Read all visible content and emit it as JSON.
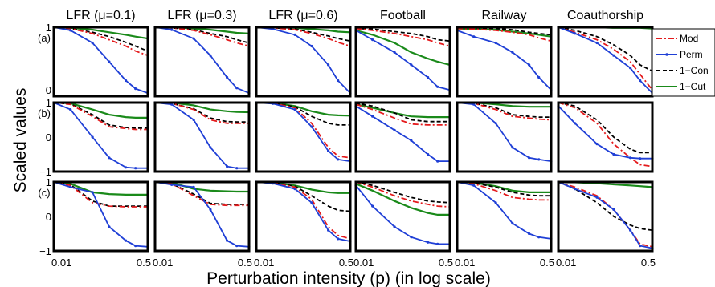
{
  "figure": {
    "ylabel": "Scaled values",
    "xlabel": "Perturbation intensity (p) (in log scale)"
  },
  "columns": [
    "LFR (μ=0.1)",
    "LFR (μ=0.3)",
    "LFR (μ=0.6)",
    "Football",
    "Railway",
    "Coauthorship"
  ],
  "rows": [
    {
      "label": "(a)",
      "yticks": [
        "1",
        "0"
      ]
    },
    {
      "label": "(b)",
      "yticks": [
        "1",
        "0",
        "−1"
      ]
    },
    {
      "label": "(c)",
      "yticks": [
        "1",
        "0",
        "−1"
      ]
    }
  ],
  "x_tick_labels": [
    "0.01",
    "0.5"
  ],
  "legend": [
    {
      "key": "mod",
      "label": "Mod",
      "color": "#e41a1c",
      "dash": "dashdot"
    },
    {
      "key": "perm",
      "label": "Perm",
      "color": "#1f3fd6",
      "dash": "solid-marker"
    },
    {
      "key": "con",
      "label": "1−Con",
      "color": "#000000",
      "dash": "dashed"
    },
    {
      "key": "cut",
      "label": "1−Cut",
      "color": "#1a8a1a",
      "dash": "solid"
    }
  ],
  "chart_data": {
    "type": "line",
    "layout": "3x6 small multiples",
    "x_scale": "log",
    "x_range": [
      0.01,
      0.5
    ],
    "x_samples": [
      0.01,
      0.02,
      0.05,
      0.1,
      0.2,
      0.3,
      0.5
    ],
    "rows": [
      {
        "ylim": [
          -0.1,
          1
        ],
        "panels": [
          {
            "column": "LFR (μ=0.1)",
            "series": {
              "mod": [
                1,
                0.98,
                0.9,
                0.8,
                0.7,
                0.62,
                0.55
              ],
              "perm": [
                1,
                0.95,
                0.75,
                0.45,
                0.15,
                0.02,
                -0.05
              ],
              "con": [
                1,
                0.98,
                0.92,
                0.85,
                0.76,
                0.7,
                0.62
              ],
              "cut": [
                1,
                0.99,
                0.96,
                0.92,
                0.88,
                0.85,
                0.82
              ]
            }
          },
          {
            "column": "LFR (μ=0.3)",
            "series": {
              "mod": [
                1,
                0.99,
                0.95,
                0.88,
                0.8,
                0.75,
                0.7
              ],
              "perm": [
                1,
                0.96,
                0.82,
                0.55,
                0.2,
                0.03,
                -0.05
              ],
              "con": [
                1,
                0.99,
                0.96,
                0.9,
                0.85,
                0.8,
                0.75
              ],
              "cut": [
                1,
                1,
                0.98,
                0.96,
                0.93,
                0.91,
                0.9
              ]
            }
          },
          {
            "column": "LFR (μ=0.6)",
            "series": {
              "mod": [
                1,
                0.99,
                0.96,
                0.9,
                0.82,
                0.76,
                0.7
              ],
              "perm": [
                1,
                0.97,
                0.88,
                0.7,
                0.4,
                0.15,
                -0.05
              ],
              "con": [
                1,
                0.99,
                0.97,
                0.92,
                0.86,
                0.82,
                0.78
              ],
              "cut": [
                1,
                1,
                0.99,
                0.97,
                0.95,
                0.93,
                0.92
              ]
            }
          },
          {
            "column": "Football",
            "series": {
              "mod": [
                0.98,
                0.95,
                0.9,
                0.85,
                0.8,
                0.75,
                0.7
              ],
              "perm": [
                0.95,
                0.8,
                0.6,
                0.4,
                0.2,
                0.05,
                0
              ],
              "con": [
                0.98,
                0.97,
                0.93,
                0.9,
                0.85,
                0.8,
                0.78
              ],
              "cut": [
                0.95,
                0.88,
                0.75,
                0.6,
                0.5,
                0.45,
                0.4
              ]
            }
          },
          {
            "column": "Railway",
            "series": {
              "mod": [
                0.98,
                0.97,
                0.95,
                0.92,
                0.88,
                0.83,
                0.78
              ],
              "perm": [
                0.95,
                0.85,
                0.75,
                0.6,
                0.4,
                0.2,
                0
              ],
              "con": [
                1,
                0.99,
                0.98,
                0.96,
                0.92,
                0.9,
                0.88
              ],
              "cut": [
                0.98,
                0.97,
                0.96,
                0.93,
                0.9,
                0.88,
                0.85
              ]
            }
          },
          {
            "column": "Coauthorship",
            "series": {
              "mod": [
                1,
                0.92,
                0.8,
                0.65,
                0.45,
                0.25,
                0
              ],
              "perm": [
                1,
                0.9,
                0.75,
                0.55,
                0.35,
                0.15,
                -0.05
              ],
              "con": [
                1,
                0.95,
                0.85,
                0.72,
                0.55,
                0.4,
                0.3
              ],
              "cut": [
                1,
                1,
                1,
                0.99,
                0.99,
                0.99,
                0.98
              ]
            }
          }
        ]
      },
      {
        "ylim": [
          -1,
          1
        ],
        "panels": [
          {
            "column": "LFR (μ=0.1)",
            "series": {
              "mod": [
                1,
                0.95,
                0.6,
                0.3,
                0.25,
                0.22,
                0.22
              ],
              "perm": [
                1,
                0.8,
                0.0,
                -0.6,
                -0.88,
                -0.9,
                -0.9
              ],
              "con": [
                1,
                0.96,
                0.65,
                0.35,
                0.28,
                0.26,
                0.26
              ],
              "cut": [
                1,
                0.98,
                0.8,
                0.65,
                0.58,
                0.56,
                0.56
              ]
            }
          },
          {
            "column": "LFR (μ=0.3)",
            "series": {
              "mod": [
                1,
                0.98,
                0.8,
                0.5,
                0.4,
                0.4,
                0.4
              ],
              "perm": [
                1,
                0.95,
                0.5,
                -0.3,
                -0.85,
                -0.9,
                -0.9
              ],
              "con": [
                1,
                0.98,
                0.82,
                0.55,
                0.45,
                0.44,
                0.44
              ],
              "cut": [
                1,
                1,
                0.92,
                0.8,
                0.75,
                0.73,
                0.72
              ]
            }
          },
          {
            "column": "LFR (μ=0.6)",
            "series": {
              "mod": [
                1,
                0.98,
                0.85,
                0.4,
                -0.3,
                -0.55,
                -0.6
              ],
              "perm": [
                1,
                0.97,
                0.8,
                0.3,
                -0.4,
                -0.65,
                -0.7
              ],
              "con": [
                1,
                0.98,
                0.88,
                0.6,
                0.4,
                0.35,
                0.35
              ],
              "cut": [
                1,
                0.99,
                0.9,
                0.75,
                0.65,
                0.63,
                0.62
              ]
            }
          },
          {
            "column": "Football",
            "series": {
              "mod": [
                0.95,
                0.8,
                0.55,
                0.38,
                0.35,
                0.35,
                0.35
              ],
              "perm": [
                0.9,
                0.6,
                0.2,
                -0.1,
                -0.5,
                -0.7,
                -0.7
              ],
              "con": [
                0.98,
                0.9,
                0.7,
                0.5,
                0.45,
                0.45,
                0.45
              ],
              "cut": [
                0.95,
                0.85,
                0.7,
                0.6,
                0.58,
                0.58,
                0.58
              ]
            }
          },
          {
            "column": "Railway",
            "series": {
              "mod": [
                1,
                0.98,
                0.8,
                0.6,
                0.55,
                0.52,
                0.5
              ],
              "perm": [
                1,
                0.95,
                0.4,
                -0.3,
                -0.6,
                -0.65,
                -0.7
              ],
              "con": [
                1,
                0.98,
                0.85,
                0.65,
                0.6,
                0.58,
                0.58
              ],
              "cut": [
                1,
                1,
                0.95,
                0.9,
                0.88,
                0.88,
                0.88
              ]
            }
          },
          {
            "column": "Coauthorship",
            "series": {
              "mod": [
                1,
                0.85,
                0.4,
                -0.2,
                -0.6,
                -0.8,
                -0.85
              ],
              "perm": [
                0.9,
                0.4,
                -0.2,
                -0.5,
                -0.6,
                -0.62,
                -0.62
              ],
              "con": [
                1,
                0.9,
                0.5,
                0.0,
                -0.35,
                -0.45,
                -0.45
              ],
              "cut": [
                1,
                1,
                1,
                0.99,
                0.99,
                0.99,
                0.99
              ]
            }
          }
        ]
      },
      {
        "ylim": [
          -1,
          1
        ],
        "panels": [
          {
            "column": "LFR (μ=0.1)",
            "series": {
              "mod": [
                1,
                0.9,
                0.4,
                0.3,
                0.28,
                0.28,
                0.28
              ],
              "perm": [
                1,
                0.85,
                0.7,
                -0.3,
                -0.7,
                -0.85,
                -0.88
              ],
              "con": [
                1,
                0.92,
                0.45,
                0.3,
                0.3,
                0.3,
                0.3
              ],
              "cut": [
                1,
                0.95,
                0.7,
                0.65,
                0.63,
                0.63,
                0.63
              ]
            }
          },
          {
            "column": "LFR (μ=0.3)",
            "series": {
              "mod": [
                1,
                0.95,
                0.6,
                0.35,
                0.32,
                0.32,
                0.32
              ],
              "perm": [
                1,
                0.92,
                0.85,
                0.2,
                -0.7,
                -0.85,
                -0.88
              ],
              "con": [
                1,
                0.95,
                0.65,
                0.38,
                0.35,
                0.35,
                0.35
              ],
              "cut": [
                1,
                0.98,
                0.8,
                0.75,
                0.73,
                0.72,
                0.72
              ]
            }
          },
          {
            "column": "LFR (μ=0.6)",
            "series": {
              "mod": [
                1,
                0.97,
                0.85,
                0.5,
                -0.3,
                -0.55,
                -0.65
              ],
              "perm": [
                1,
                0.96,
                0.8,
                0.4,
                -0.4,
                -0.65,
                -0.72
              ],
              "con": [
                1,
                0.97,
                0.88,
                0.6,
                0.3,
                0.18,
                0.15
              ],
              "cut": [
                1,
                0.98,
                0.9,
                0.78,
                0.7,
                0.68,
                0.68
              ]
            }
          },
          {
            "column": "Football",
            "series": {
              "mod": [
                1,
                0.85,
                0.6,
                0.45,
                0.35,
                0.3,
                0.28
              ],
              "perm": [
                0.9,
                0.3,
                -0.3,
                -0.6,
                -0.75,
                -0.8,
                -0.8
              ],
              "con": [
                1,
                0.9,
                0.7,
                0.55,
                0.45,
                0.42,
                0.4
              ],
              "cut": [
                0.95,
                0.75,
                0.45,
                0.25,
                0.1,
                0.05,
                0.05
              ]
            }
          },
          {
            "column": "Railway",
            "series": {
              "mod": [
                1,
                0.95,
                0.75,
                0.55,
                0.5,
                0.48,
                0.48
              ],
              "perm": [
                1,
                0.9,
                0.4,
                -0.2,
                -0.5,
                -0.6,
                -0.65
              ],
              "con": [
                1,
                0.97,
                0.85,
                0.7,
                0.62,
                0.6,
                0.6
              ],
              "cut": [
                1,
                0.98,
                0.88,
                0.75,
                0.7,
                0.7,
                0.7
              ]
            }
          },
          {
            "column": "Coauthorship",
            "series": {
              "mod": [
                1,
                0.85,
                0.6,
                0.2,
                -0.4,
                -0.8,
                -0.88
              ],
              "perm": [
                1,
                0.8,
                0.55,
                0.2,
                -0.4,
                -0.85,
                -0.92
              ],
              "con": [
                1,
                0.8,
                0.4,
                0.0,
                -0.25,
                -0.35,
                -0.4
              ],
              "cut": [
                1,
                0.99,
                0.96,
                0.93,
                0.9,
                0.88,
                0.85
              ]
            }
          }
        ]
      }
    ]
  }
}
